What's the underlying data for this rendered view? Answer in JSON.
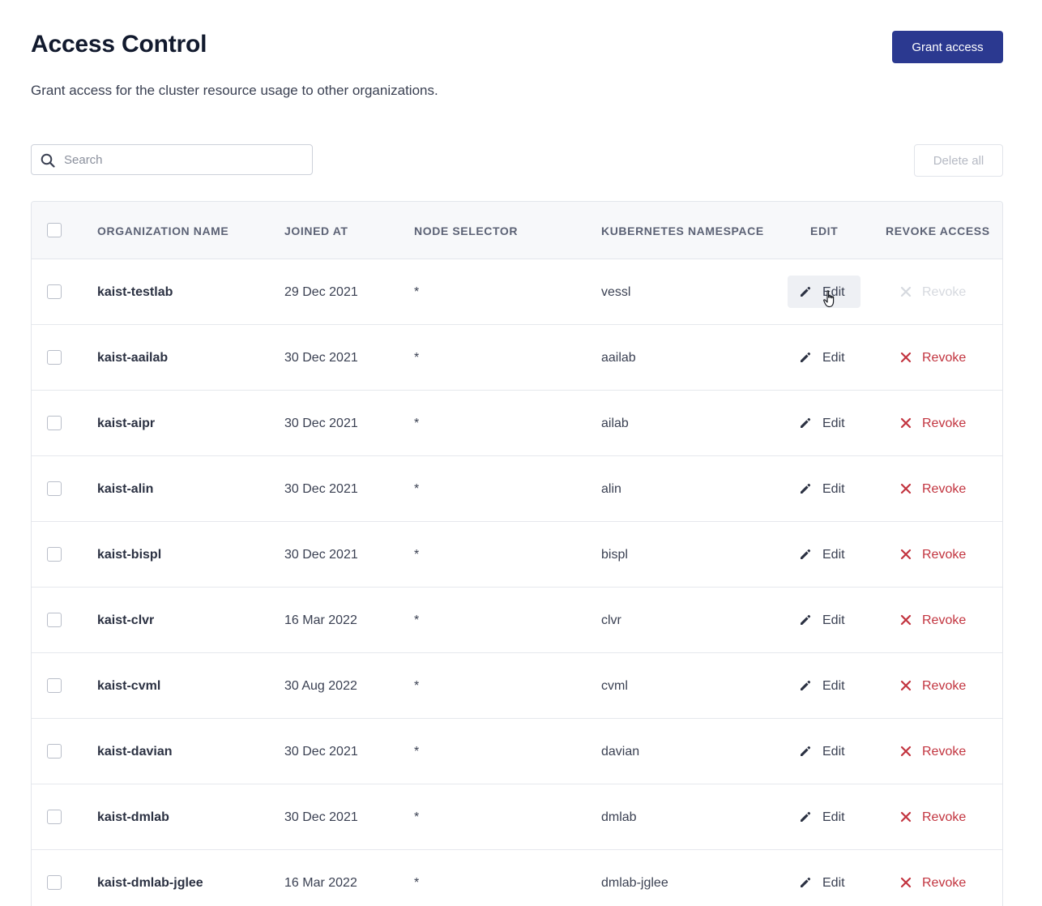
{
  "header": {
    "title": "Access Control",
    "subtitle": "Grant access for the cluster resource usage to other organizations.",
    "grant_button": "Grant access"
  },
  "toolbar": {
    "search_placeholder": "Search",
    "search_value": "",
    "delete_all": "Delete all"
  },
  "table": {
    "columns": [
      "ORGANIZATION NAME",
      "JOINED AT",
      "NODE SELECTOR",
      "KUBERNETES NAMESPACE",
      "EDIT",
      "REVOKE ACCESS"
    ],
    "edit_label": "Edit",
    "revoke_label": "Revoke",
    "rows": [
      {
        "org": "kaist-testlab",
        "joined": "29 Dec 2021",
        "selector": "*",
        "namespace": "vessl",
        "revoke_enabled": false,
        "edit_hover": true
      },
      {
        "org": "kaist-aailab",
        "joined": "30 Dec 2021",
        "selector": "*",
        "namespace": "aailab",
        "revoke_enabled": true,
        "edit_hover": false
      },
      {
        "org": "kaist-aipr",
        "joined": "30 Dec 2021",
        "selector": "*",
        "namespace": "ailab",
        "revoke_enabled": true,
        "edit_hover": false
      },
      {
        "org": "kaist-alin",
        "joined": "30 Dec 2021",
        "selector": "*",
        "namespace": "alin",
        "revoke_enabled": true,
        "edit_hover": false
      },
      {
        "org": "kaist-bispl",
        "joined": "30 Dec 2021",
        "selector": "*",
        "namespace": "bispl",
        "revoke_enabled": true,
        "edit_hover": false
      },
      {
        "org": "kaist-clvr",
        "joined": "16 Mar 2022",
        "selector": "*",
        "namespace": "clvr",
        "revoke_enabled": true,
        "edit_hover": false
      },
      {
        "org": "kaist-cvml",
        "joined": "30 Aug 2022",
        "selector": "*",
        "namespace": "cvml",
        "revoke_enabled": true,
        "edit_hover": false
      },
      {
        "org": "kaist-davian",
        "joined": "30 Dec 2021",
        "selector": "*",
        "namespace": "davian",
        "revoke_enabled": true,
        "edit_hover": false
      },
      {
        "org": "kaist-dmlab",
        "joined": "30 Dec 2021",
        "selector": "*",
        "namespace": "dmlab",
        "revoke_enabled": true,
        "edit_hover": false
      },
      {
        "org": "kaist-dmlab-jglee",
        "joined": "16 Mar 2022",
        "selector": "*",
        "namespace": "dmlab-jglee",
        "revoke_enabled": true,
        "edit_hover": false
      }
    ]
  },
  "icons": {
    "search": "search-icon",
    "edit": "pencil-icon",
    "revoke": "close-icon",
    "cursor": "hand-pointer-icon"
  },
  "colors": {
    "primary": "#2b3990",
    "danger": "#c2343f",
    "disabled": "#d6d9df"
  }
}
